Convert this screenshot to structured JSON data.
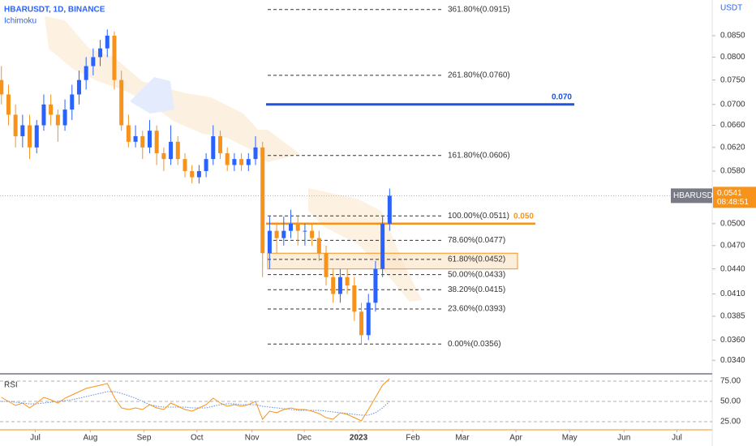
{
  "chart_data": {
    "type": "candlestick",
    "title": "HBARUSDT, 1D, BINANCE",
    "indicator": "Ichimoku",
    "y_axis_label": "USDT",
    "log_scale": true,
    "up_color": "#2962ff",
    "down_color": "#f7931a",
    "open": [
      0.075,
      0.072,
      0.068,
      0.064,
      0.066,
      0.062,
      0.066,
      0.07,
      0.068,
      0.066,
      0.069,
      0.072,
      0.075,
      0.078,
      0.08,
      0.082,
      0.085,
      0.075,
      0.066,
      0.063,
      0.064,
      0.062,
      0.065,
      0.061,
      0.06,
      0.063,
      0.06,
      0.058,
      0.057,
      0.058,
      0.06,
      0.064,
      0.061,
      0.059,
      0.06,
      0.059,
      0.06,
      0.062,
      0.046,
      0.049,
      0.048,
      0.049,
      0.05,
      0.049,
      0.049,
      0.048,
      0.046,
      0.043,
      0.041,
      0.043,
      0.042,
      0.039,
      0.0365,
      0.04,
      0.044,
      0.05
    ],
    "high": [
      0.078,
      0.074,
      0.07,
      0.068,
      0.068,
      0.067,
      0.072,
      0.072,
      0.069,
      0.071,
      0.074,
      0.077,
      0.08,
      0.082,
      0.084,
      0.0865,
      0.086,
      0.077,
      0.068,
      0.066,
      0.065,
      0.067,
      0.066,
      0.062,
      0.066,
      0.064,
      0.061,
      0.059,
      0.059,
      0.061,
      0.066,
      0.065,
      0.062,
      0.061,
      0.061,
      0.061,
      0.064,
      0.063,
      0.051,
      0.05,
      0.051,
      0.052,
      0.051,
      0.05,
      0.05,
      0.049,
      0.047,
      0.044,
      0.044,
      0.044,
      0.043,
      0.04,
      0.041,
      0.045,
      0.051,
      0.0552
    ],
    "low": [
      0.07,
      0.066,
      0.062,
      0.062,
      0.06,
      0.061,
      0.065,
      0.066,
      0.063,
      0.065,
      0.067,
      0.07,
      0.073,
      0.076,
      0.078,
      0.08,
      0.073,
      0.065,
      0.062,
      0.062,
      0.06,
      0.061,
      0.059,
      0.058,
      0.059,
      0.059,
      0.057,
      0.056,
      0.056,
      0.057,
      0.059,
      0.06,
      0.058,
      0.058,
      0.058,
      0.058,
      0.059,
      0.043,
      0.044,
      0.046,
      0.047,
      0.048,
      0.047,
      0.047,
      0.047,
      0.045,
      0.042,
      0.04,
      0.04,
      0.041,
      0.038,
      0.0356,
      0.036,
      0.039,
      0.043,
      0.049
    ],
    "close": [
      0.072,
      0.068,
      0.064,
      0.066,
      0.062,
      0.066,
      0.07,
      0.068,
      0.066,
      0.069,
      0.072,
      0.075,
      0.078,
      0.08,
      0.082,
      0.085,
      0.075,
      0.066,
      0.063,
      0.064,
      0.062,
      0.065,
      0.061,
      0.06,
      0.063,
      0.06,
      0.058,
      0.057,
      0.058,
      0.06,
      0.064,
      0.061,
      0.059,
      0.06,
      0.059,
      0.06,
      0.062,
      0.046,
      0.049,
      0.048,
      0.049,
      0.05,
      0.049,
      0.049,
      0.048,
      0.046,
      0.043,
      0.041,
      0.043,
      0.042,
      0.039,
      0.0365,
      0.04,
      0.044,
      0.05,
      0.0541
    ],
    "xlim": [
      -0.2,
      100.7
    ],
    "xticks": [
      {
        "value": 4.8,
        "label": "Jul"
      },
      {
        "value": 12.6,
        "label": "Aug"
      },
      {
        "value": 20.2,
        "label": "Sep"
      },
      {
        "value": 27.7,
        "label": "Oct"
      },
      {
        "value": 35.5,
        "label": "Nov"
      },
      {
        "value": 42.9,
        "label": "Dec"
      },
      {
        "value": 50.6,
        "label": "2023"
      },
      {
        "value": 58.3,
        "label": "Feb"
      },
      {
        "value": 65.3,
        "label": "Mar"
      },
      {
        "value": 72.9,
        "label": "Apr"
      },
      {
        "value": 80.5,
        "label": "May"
      },
      {
        "value": 88.2,
        "label": "Jun"
      },
      {
        "value": 95.7,
        "label": "Jul"
      }
    ],
    "ylim": [
      0.0328,
      0.094
    ],
    "yticks": [
      {
        "value": 0.085,
        "label": "0.0850"
      },
      {
        "value": 0.08,
        "label": "0.0800"
      },
      {
        "value": 0.075,
        "label": "0.0750"
      },
      {
        "value": 0.07,
        "label": "0.0700"
      },
      {
        "value": 0.066,
        "label": "0.0660"
      },
      {
        "value": 0.062,
        "label": "0.0620"
      },
      {
        "value": 0.058,
        "label": "0.0580"
      },
      {
        "value": 0.05,
        "label": "0.0500"
      },
      {
        "value": 0.047,
        "label": "0.0470"
      },
      {
        "value": 0.044,
        "label": "0.0440"
      },
      {
        "value": 0.041,
        "label": "0.0410"
      },
      {
        "value": 0.0385,
        "label": "0.0385"
      },
      {
        "value": 0.036,
        "label": "0.0360"
      },
      {
        "value": 0.034,
        "label": "0.0340"
      }
    ],
    "fib_levels": [
      {
        "value": 0.0915,
        "label": "361.80%(0.0915)"
      },
      {
        "value": 0.076,
        "label": "261.80%(0.0760)"
      },
      {
        "value": 0.0606,
        "label": "161.80%(0.0606)"
      },
      {
        "value": 0.0511,
        "label": "100.00%(0.0511)"
      },
      {
        "value": 0.0477,
        "label": "78.60%(0.0477)"
      },
      {
        "value": 0.0452,
        "label": "61.80%(0.0452)"
      },
      {
        "value": 0.0433,
        "label": "50.00%(0.0433)"
      },
      {
        "value": 0.0415,
        "label": "38.20%(0.0415)"
      },
      {
        "value": 0.0393,
        "label": "23.60%(0.0393)"
      },
      {
        "value": 0.0356,
        "label": "0.00%(0.0356)"
      }
    ],
    "targets": [
      {
        "value": 0.07,
        "label": "0.070",
        "color": "#1e53e5"
      },
      {
        "value": 0.05,
        "label": "0.050",
        "color": "#f7931a"
      }
    ],
    "zone": [
      0.044,
      0.046
    ],
    "symbol": "HBARUSDT",
    "last_price": 0.0541,
    "countdown": "08:48:51",
    "rsi": {
      "title": "RSI",
      "color": "#f7931a",
      "ma_color": "#5b8def",
      "values": [
        55,
        50,
        45,
        48,
        42,
        48,
        55,
        52,
        48,
        54,
        58,
        62,
        66,
        68,
        70,
        72,
        55,
        42,
        40,
        42,
        40,
        46,
        42,
        40,
        48,
        44,
        40,
        38,
        42,
        46,
        54,
        48,
        44,
        46,
        44,
        46,
        50,
        28,
        38,
        36,
        40,
        42,
        40,
        40,
        38,
        35,
        30,
        28,
        36,
        34,
        30,
        26,
        40,
        55,
        70,
        78
      ],
      "ma": [
        50,
        50,
        49,
        48,
        47,
        47,
        48,
        49,
        50,
        51,
        52,
        54,
        56,
        58,
        60,
        62,
        62,
        60,
        57,
        54,
        50,
        46,
        44,
        43,
        43,
        43,
        43,
        42,
        42,
        42,
        44,
        46,
        47,
        47,
        46,
        46,
        46,
        44,
        43,
        42,
        41,
        40,
        39,
        39,
        39,
        39,
        38,
        37,
        36,
        35,
        34,
        33,
        33,
        36,
        42,
        50
      ],
      "ylim": [
        15,
        83
      ],
      "yticks": [
        {
          "value": 75,
          "label": "75.00"
        },
        {
          "value": 50,
          "label": "50.00"
        },
        {
          "value": 25,
          "label": "25.00"
        }
      ]
    }
  }
}
